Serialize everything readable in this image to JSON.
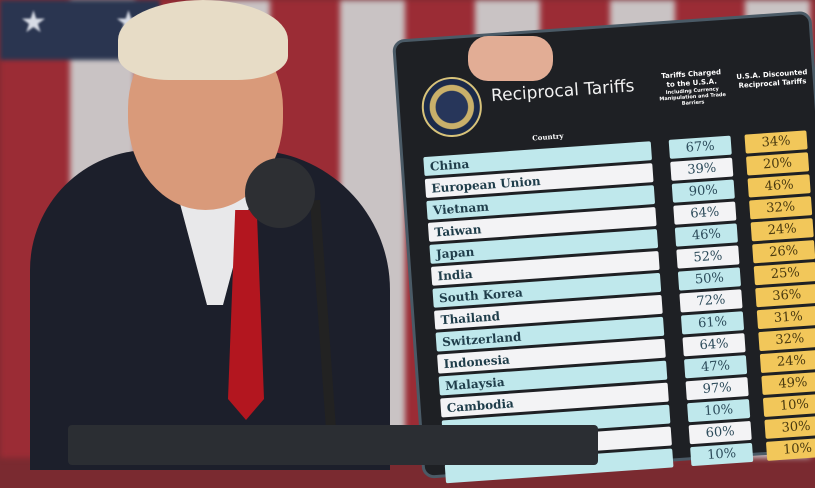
{
  "board": {
    "title": "Reciprocal Tariffs",
    "col_country": "Country",
    "col_charged": "Tariffs Charged to the U.S.A.",
    "col_charged_note": "Including Currency Manipulation and Trade Barriers",
    "col_discounted": "U.S.A. Discounted Reciprocal Tariffs",
    "rows": [
      {
        "country": "China",
        "charged": "67%",
        "discounted": "34%"
      },
      {
        "country": "European Union",
        "charged": "39%",
        "discounted": "20%"
      },
      {
        "country": "Vietnam",
        "charged": "90%",
        "discounted": "46%"
      },
      {
        "country": "Taiwan",
        "charged": "64%",
        "discounted": "32%"
      },
      {
        "country": "Japan",
        "charged": "46%",
        "discounted": "24%"
      },
      {
        "country": "India",
        "charged": "52%",
        "discounted": "26%"
      },
      {
        "country": "South Korea",
        "charged": "50%",
        "discounted": "25%"
      },
      {
        "country": "Thailand",
        "charged": "72%",
        "discounted": "36%"
      },
      {
        "country": "Switzerland",
        "charged": "61%",
        "discounted": "31%"
      },
      {
        "country": "Indonesia",
        "charged": "64%",
        "discounted": "32%"
      },
      {
        "country": "Malaysia",
        "charged": "47%",
        "discounted": "24%"
      },
      {
        "country": "Cambodia",
        "charged": "97%",
        "discounted": "49%"
      },
      {
        "country": "",
        "charged": "10%",
        "discounted": "10%"
      },
      {
        "country": "",
        "charged": "60%",
        "discounted": "30%"
      },
      {
        "country": "",
        "charged": "10%",
        "discounted": "10%"
      }
    ]
  },
  "colors": {
    "cyan_row": "#bfe8ec",
    "white_row": "#f3f3f5",
    "gold": "#f2c75a",
    "board": "#1e2024"
  }
}
